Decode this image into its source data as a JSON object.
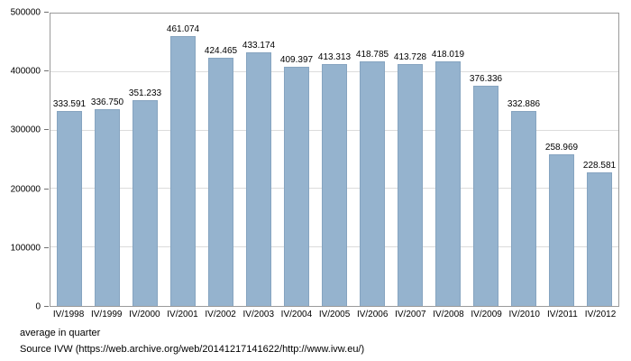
{
  "chart_data": {
    "type": "bar",
    "categories": [
      "IV/1998",
      "IV/1999",
      "IV/2000",
      "IV/2001",
      "IV/2002",
      "IV/2003",
      "IV/2004",
      "IV/2005",
      "IV/2006",
      "IV/2007",
      "IV/2008",
      "IV/2009",
      "IV/2010",
      "IV/2011",
      "IV/2012"
    ],
    "values": [
      333591,
      336750,
      351233,
      461074,
      424465,
      433174,
      409397,
      413313,
      418785,
      413728,
      418019,
      376336,
      332886,
      258969,
      228581
    ],
    "value_labels": [
      "333.591",
      "336.750",
      "351.233",
      "461.074",
      "424.465",
      "433.174",
      "409.397",
      "413.313",
      "418.785",
      "413.728",
      "418.019",
      "376.336",
      "332.886",
      "258.969",
      "228.581"
    ],
    "title": "",
    "xlabel": "",
    "ylabel": "",
    "ylim": [
      0,
      500000
    ],
    "ytick_step": 100000,
    "ytick_labels": [
      "0",
      "100000",
      "200000",
      "300000",
      "400000",
      "500000"
    ],
    "grid": true,
    "legend": "none",
    "bar_color": "#95b3ce",
    "bar_border_color": "#86a4c0"
  },
  "footer": {
    "note": "average in quarter",
    "source": "Source IVW (https://web.archive.org/web/20141217141622/http://www.ivw.eu/)"
  }
}
